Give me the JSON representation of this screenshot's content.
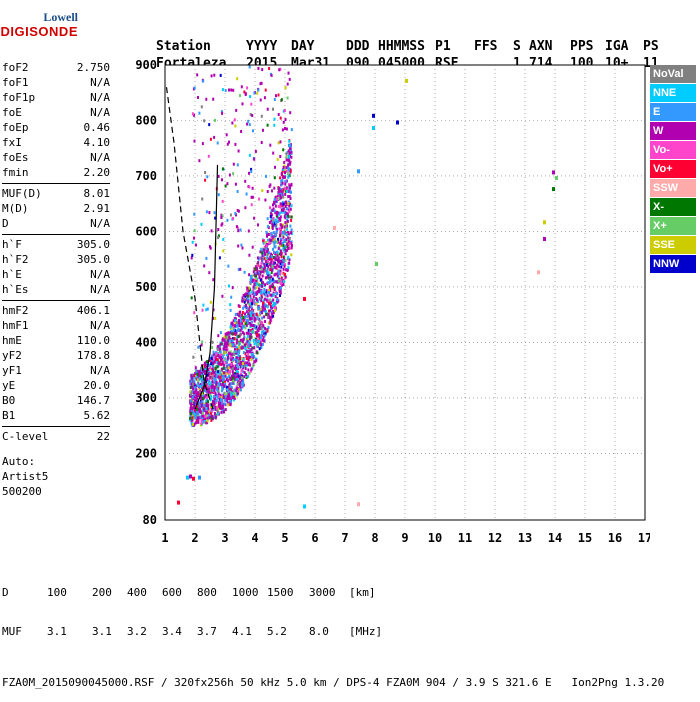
{
  "logo": {
    "line1": "Lowell",
    "line2": "DIGISONDE"
  },
  "header": {
    "labels": [
      "Station",
      "YYYY",
      "DAY",
      "DDD",
      "HHMMSS",
      "P1",
      "FFS",
      "S",
      "AXN",
      "PPS",
      "IGA",
      "PS"
    ],
    "values": [
      "Fortaleza",
      "2015",
      "Mar31",
      "090",
      "045000",
      "RSF",
      "",
      "1",
      "714",
      "100",
      "10+",
      "11"
    ]
  },
  "params": [
    [
      {
        "k": "foF2",
        "v": "2.750"
      },
      {
        "k": "foF1",
        "v": "N/A"
      },
      {
        "k": "foF1p",
        "v": "N/A"
      },
      {
        "k": "foE",
        "v": "N/A"
      },
      {
        "k": "foEp",
        "v": "0.46"
      },
      {
        "k": "fxI",
        "v": "4.10"
      },
      {
        "k": "foEs",
        "v": "N/A"
      },
      {
        "k": "fmin",
        "v": "2.20"
      }
    ],
    [
      {
        "k": "MUF(D)",
        "v": "8.01"
      },
      {
        "k": "M(D)",
        "v": "2.91"
      },
      {
        "k": "D",
        "v": "N/A"
      }
    ],
    [
      {
        "k": "h`F",
        "v": "305.0"
      },
      {
        "k": "h`F2",
        "v": "305.0"
      },
      {
        "k": "h`E",
        "v": "N/A"
      },
      {
        "k": "h`Es",
        "v": "N/A"
      }
    ],
    [
      {
        "k": "hmF2",
        "v": "406.1"
      },
      {
        "k": "hmF1",
        "v": "N/A"
      },
      {
        "k": "hmE",
        "v": "110.0"
      },
      {
        "k": "yF2",
        "v": "178.8"
      },
      {
        "k": "yF1",
        "v": "N/A"
      },
      {
        "k": "yE",
        "v": "20.0"
      },
      {
        "k": "B0",
        "v": "146.7"
      },
      {
        "k": "B1",
        "v": "5.62"
      }
    ],
    [
      {
        "k": "C-level",
        "v": "22"
      }
    ]
  ],
  "auto": {
    "label": "Auto:",
    "name": "Artist5",
    "code": "500200"
  },
  "legend": [
    {
      "label": "NoVal",
      "color": "#808080"
    },
    {
      "label": "NNE",
      "color": "#00ccff"
    },
    {
      "label": "E",
      "color": "#3399ff"
    },
    {
      "label": "W",
      "color": "#b000b0"
    },
    {
      "label": "Vo-",
      "color": "#ff44cc"
    },
    {
      "label": "Vo+",
      "color": "#ff0033"
    },
    {
      "label": "SSW",
      "color": "#ffaaaa"
    },
    {
      "label": "X-",
      "color": "#007700"
    },
    {
      "label": "X+",
      "color": "#66cc66"
    },
    {
      "label": "SSE",
      "color": "#cccc00"
    },
    {
      "label": "NNW",
      "color": "#0000cc"
    }
  ],
  "chart_data": {
    "type": "scatter",
    "xlim": [
      1,
      17
    ],
    "ylim": [
      80,
      900
    ],
    "x_ticks": [
      1,
      2,
      3,
      4,
      5,
      6,
      7,
      8,
      9,
      10,
      11,
      12,
      13,
      14,
      15,
      16,
      17
    ],
    "y_ticks": [
      80,
      200,
      300,
      400,
      500,
      600,
      700,
      800,
      900
    ],
    "grid": "dotted",
    "trace_region": {
      "freq_range": [
        1.8,
        5.2
      ],
      "height_range": [
        250,
        900
      ]
    },
    "profile_line": {
      "x": [
        2.0,
        2.3,
        2.5,
        2.65,
        2.75
      ],
      "y": [
        280,
        320,
        380,
        500,
        720
      ]
    },
    "dashed_line": {
      "x": [
        1.05,
        1.3,
        1.6,
        2.0,
        2.3,
        2.6
      ],
      "y": [
        860,
        760,
        600,
        480,
        330,
        280
      ]
    },
    "sample_points": [
      {
        "x": 1.7,
        "y": 160,
        "c": 1
      },
      {
        "x": 1.8,
        "y": 162,
        "c": 3
      },
      {
        "x": 1.9,
        "y": 158,
        "c": 5
      },
      {
        "x": 2.1,
        "y": 160,
        "c": 2
      },
      {
        "x": 1.4,
        "y": 115,
        "c": 5
      },
      {
        "x": 5.6,
        "y": 108,
        "c": 1
      },
      {
        "x": 7.4,
        "y": 112,
        "c": 6
      },
      {
        "x": 7.9,
        "y": 812,
        "c": 10
      },
      {
        "x": 8.7,
        "y": 800,
        "c": 10
      },
      {
        "x": 7.9,
        "y": 790,
        "c": 1
      },
      {
        "x": 9.0,
        "y": 875,
        "c": 9
      },
      {
        "x": 7.4,
        "y": 712,
        "c": 2
      },
      {
        "x": 8.0,
        "y": 545,
        "c": 8
      },
      {
        "x": 5.6,
        "y": 482,
        "c": 5
      },
      {
        "x": 6.6,
        "y": 610,
        "c": 6
      },
      {
        "x": 13.9,
        "y": 710,
        "c": 3
      },
      {
        "x": 13.9,
        "y": 680,
        "c": 7
      },
      {
        "x": 13.6,
        "y": 620,
        "c": 9
      },
      {
        "x": 13.6,
        "y": 590,
        "c": 3
      },
      {
        "x": 13.4,
        "y": 530,
        "c": 6
      },
      {
        "x": 14.0,
        "y": 700,
        "c": 8
      }
    ]
  },
  "footer": {
    "row1_label": "D",
    "row1": [
      "100",
      "200",
      "400",
      "600",
      "800",
      "1000",
      "1500",
      "3000",
      "[km]"
    ],
    "row2_label": "MUF",
    "row2": [
      "3.1",
      "3.1",
      "3.2",
      "3.4",
      "3.7",
      "4.1",
      "5.2",
      "8.0",
      "[MHz]"
    ],
    "file_line": "FZA0M_2015090045000.RSF / 320fx256h 50 kHz 5.0 km / DPS-4 FZA0M 904 / 3.9 S 321.6 E   Ion2Png 1.3.20"
  }
}
